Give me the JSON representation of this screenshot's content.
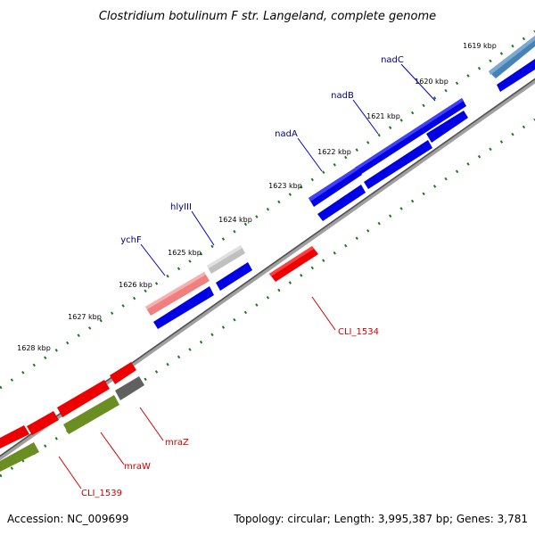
{
  "title": "Clostridium botulinum F str. Langeland, complete genome",
  "footer": {
    "accession": "Accession: NC_009699",
    "summary": "Topology: circular; Length: 3,995,387 bp; Genes: 3,781"
  },
  "kbp_labels": [
    "1619 kbp",
    "1620 kbp",
    "1621 kbp",
    "1622 kbp",
    "1623 kbp",
    "1624 kbp",
    "1625 kbp",
    "1626 kbp",
    "1627 kbp",
    "1628 kbp"
  ],
  "gene_labels": {
    "nadC": "nadC",
    "nadB": "nadB",
    "nadA": "nadA",
    "hlyIII": "hlyIII",
    "ychF": "ychF",
    "cli1534": "CLI_1534",
    "mraZ": "mraZ",
    "mraW": "mraW",
    "cli1539": "CLI_1539"
  },
  "colors": {
    "forward_gene": "#0000e6",
    "reverse_gene": "#ee0000",
    "olive_gene": "#6b8e23",
    "grey_gene": "#c0c0c0",
    "dark_grey_gene": "#606060",
    "pink_gene": "#f08080",
    "steel_gene": "#4682b4",
    "backbone": "#808080",
    "tick": "#1a7a1a",
    "forward_label": "#00008b",
    "reverse_label": "#cc0000"
  }
}
